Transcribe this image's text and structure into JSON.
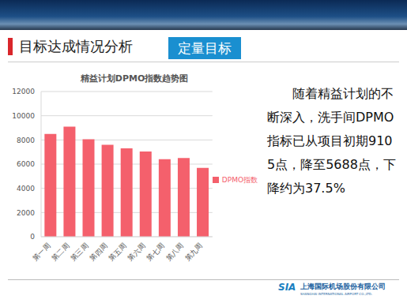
{
  "slide": {
    "title": "目标达成情况分析",
    "badge": "定量目标",
    "text": "随着精益计划的不断深入，洗手间DPMO指标已从项目初期9105点，降至5688点，下降约为37.5%",
    "footer": {
      "logo": "SIA",
      "company": "上海国际机场股份有限公司",
      "company_en": "SHANGHAI INTERNATIONAL AIRPORT CO.,LTD."
    }
  },
  "chart_data": {
    "type": "bar",
    "title": "精益计划DPMO指数趋势图",
    "categories": [
      "第一周",
      "第二周",
      "第三周",
      "第四周",
      "第五周",
      "第六周",
      "第七周",
      "第八周",
      "第九周"
    ],
    "series": [
      {
        "name": "DPMO指数",
        "color": "#f4606c",
        "values": [
          8500,
          9105,
          8050,
          7600,
          7300,
          7050,
          6400,
          6500,
          5688
        ]
      }
    ],
    "ylim": [
      0,
      12000
    ],
    "yticks": [
      0,
      2000,
      4000,
      6000,
      8000,
      10000,
      12000
    ],
    "grid": true,
    "legend": "right"
  }
}
